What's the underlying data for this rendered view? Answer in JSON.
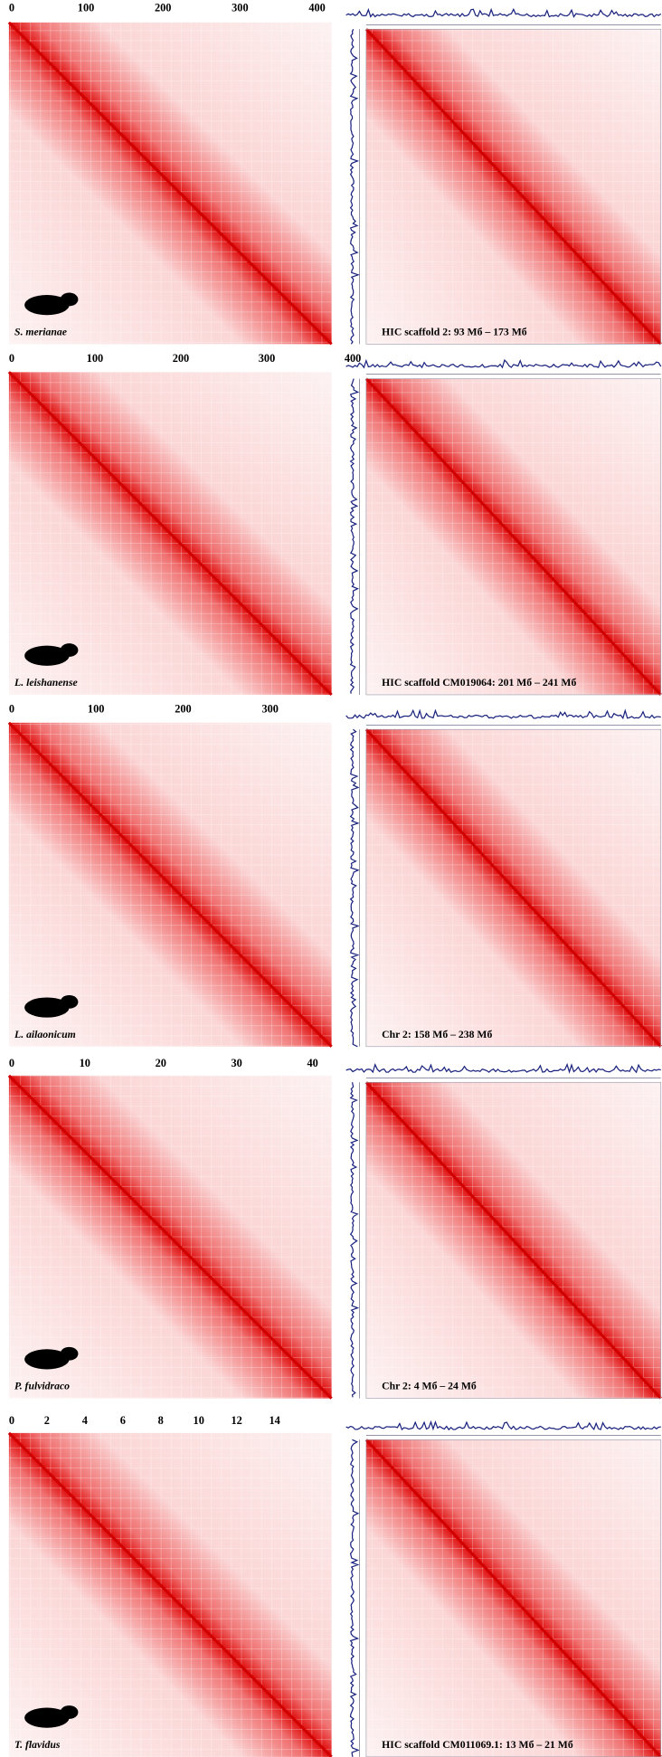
{
  "panels": [
    {
      "left": {
        "ticks": [
          "0",
          "100",
          "200",
          "300",
          "400"
        ],
        "species": "S. merianae"
      },
      "right": {
        "label": "HIC scaffold 2: 93 Мб – 173 Мб"
      }
    },
    {
      "left": {
        "ticks": [
          "0",
          "100",
          "200",
          "300",
          "400"
        ],
        "species": "L. leishanense"
      },
      "right": {
        "label": "HIC scaffold CM019064: 201 Мб – 241 Мб"
      }
    },
    {
      "left": {
        "ticks": [
          "0",
          "100",
          "200",
          "300"
        ],
        "species": "L. ailaonicum"
      },
      "right": {
        "label": "Chr 2: 158 Мб – 238 Мб"
      }
    },
    {
      "left": {
        "ticks": [
          "0",
          "10",
          "20",
          "30",
          "40"
        ],
        "species": "P. fulvidraco"
      },
      "right": {
        "label": "Chr 2: 4 Мб – 24 Мб"
      }
    },
    {
      "left": {
        "ticks": [
          "0",
          "2",
          "4",
          "6",
          "8",
          "10",
          "12",
          "14"
        ],
        "species": "T. flavidus"
      },
      "right": {
        "label": "HIC scaffold CM011069.1: 13 Мб – 21 Мб"
      }
    }
  ]
}
